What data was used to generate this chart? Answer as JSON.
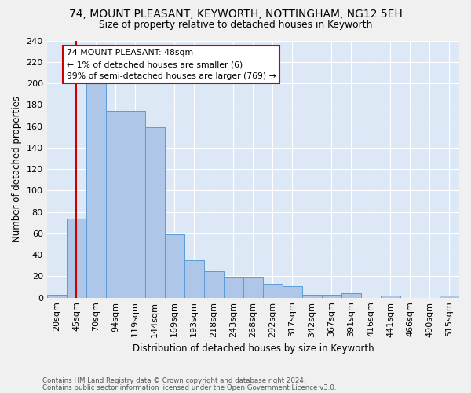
{
  "title1": "74, MOUNT PLEASANT, KEYWORTH, NOTTINGHAM, NG12 5EH",
  "title2": "Size of property relative to detached houses in Keyworth",
  "xlabel": "Distribution of detached houses by size in Keyworth",
  "ylabel": "Number of detached properties",
  "footnote1": "Contains HM Land Registry data © Crown copyright and database right 2024.",
  "footnote2": "Contains public sector information licensed under the Open Government Licence v3.0.",
  "annotation_title": "74 MOUNT PLEASANT: 48sqm",
  "annotation_line2": "← 1% of detached houses are smaller (6)",
  "annotation_line3": "99% of semi-detached houses are larger (769) →",
  "bar_labels": [
    "20sqm",
    "45sqm",
    "70sqm",
    "94sqm",
    "119sqm",
    "144sqm",
    "169sqm",
    "193sqm",
    "218sqm",
    "243sqm",
    "268sqm",
    "292sqm",
    "317sqm",
    "342sqm",
    "367sqm",
    "391sqm",
    "416sqm",
    "441sqm",
    "466sqm",
    "490sqm",
    "515sqm"
  ],
  "bar_heights": [
    3,
    74,
    201,
    174,
    174,
    159,
    59,
    35,
    25,
    19,
    19,
    13,
    11,
    3,
    3,
    4,
    0,
    2,
    0,
    0,
    2
  ],
  "bar_color": "#aec6e8",
  "bar_edgecolor": "#5b9bd5",
  "redline_x": 1,
  "ylim": [
    0,
    240
  ],
  "yticks": [
    0,
    20,
    40,
    60,
    80,
    100,
    120,
    140,
    160,
    180,
    200,
    220,
    240
  ],
  "background_color": "#dce8f5",
  "grid_color": "#ffffff",
  "fig_width": 6.0,
  "fig_height": 5.0,
  "fig_dpi": 100
}
